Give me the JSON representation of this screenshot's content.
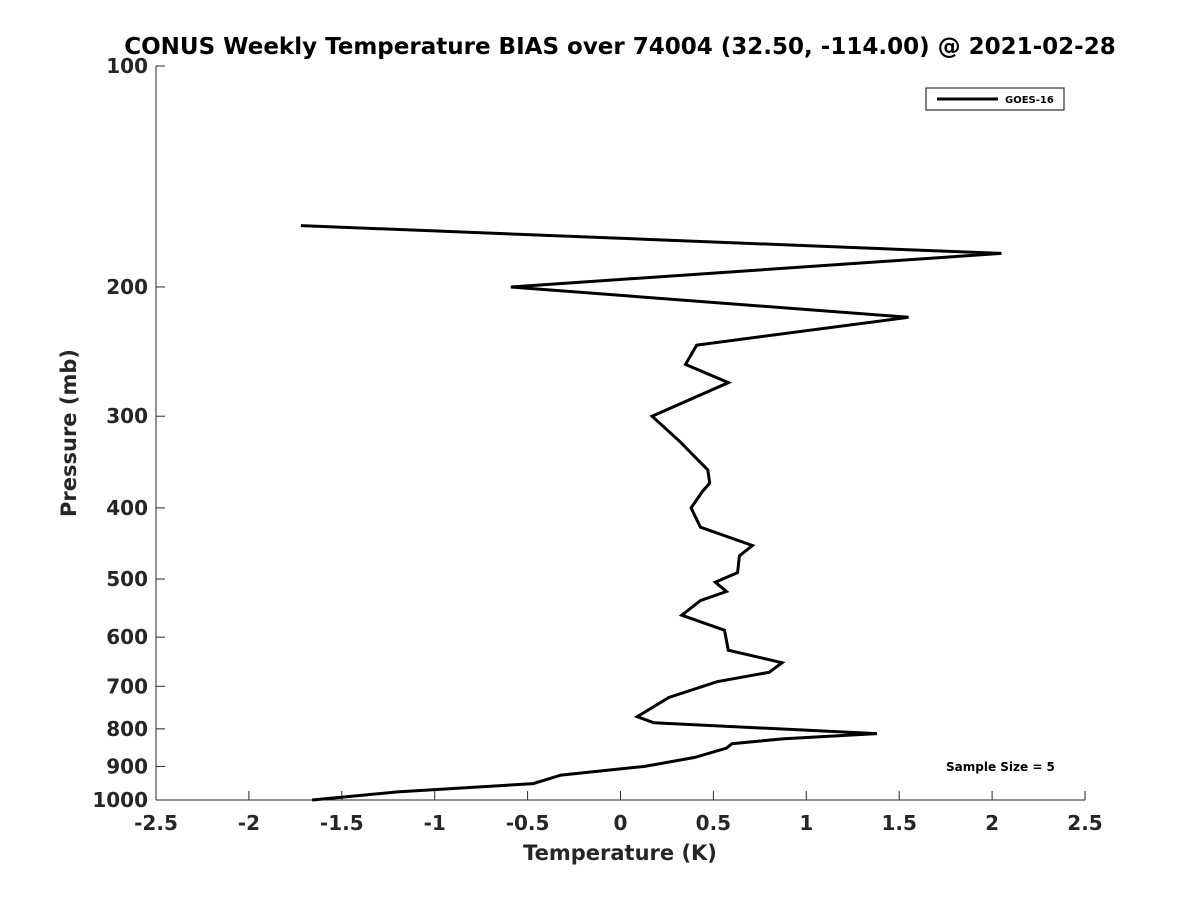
{
  "chart_data": {
    "type": "line",
    "title": "CONUS Weekly Temperature BIAS over 74004 (32.50, -114.00) @ 2021-02-28",
    "xlabel": "Temperature (K)",
    "ylabel": "Pressure (mb)",
    "xlim": [
      -2.5,
      2.5
    ],
    "ylim": [
      100,
      1000
    ],
    "y_scale": "log",
    "y_reversed": true,
    "x_ticks": [
      -2.5,
      -2,
      -1.5,
      -1,
      -0.5,
      0,
      0.5,
      1,
      1.5,
      2,
      2.5
    ],
    "x_tick_labels": [
      "-2.5",
      "-2",
      "-1.5",
      "-1",
      "-0.5",
      "0",
      "0.5",
      "1",
      "1.5",
      "2",
      "2.5"
    ],
    "y_ticks": [
      100,
      200,
      300,
      400,
      500,
      600,
      700,
      800,
      900,
      1000
    ],
    "y_tick_labels": [
      "100",
      "200",
      "300",
      "400",
      "500",
      "600",
      "700",
      "800",
      "900",
      "1000"
    ],
    "grid": false,
    "legend_position": "top-right",
    "series": [
      {
        "name": "GOES-16",
        "color": "#000000",
        "x": [
          -1.66,
          -1.2,
          -0.47,
          -0.32,
          0.13,
          0.4,
          0.57,
          0.6,
          0.88,
          1.38,
          0.18,
          0.09,
          0.26,
          0.52,
          0.8,
          0.87,
          0.58,
          0.56,
          0.33,
          0.43,
          0.57,
          0.51,
          0.63,
          0.64,
          0.71,
          0.43,
          0.38,
          0.44,
          0.48,
          0.47,
          0.32,
          0.17,
          0.58,
          0.35,
          0.41,
          1.55,
          -0.59,
          2.05,
          -1.72
        ],
        "y": [
          1000,
          975,
          950,
          925,
          900,
          875,
          850,
          838,
          825,
          812,
          785,
          770,
          725,
          690,
          670,
          650,
          625,
          587,
          560,
          535,
          520,
          505,
          490,
          465,
          450,
          425,
          400,
          380,
          370,
          355,
          325,
          300,
          270,
          255,
          240,
          220,
          200,
          180,
          165
        ]
      }
    ],
    "annotations": [
      "Sample Size = 5"
    ]
  },
  "colors": {
    "background": "#ffffff",
    "axis": "#262626",
    "line": "#000000"
  }
}
